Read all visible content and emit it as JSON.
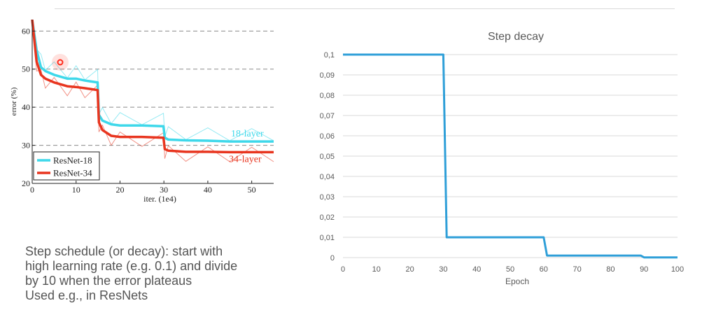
{
  "caption": {
    "lines": [
      "Step schedule (or decay): start with",
      "high learning rate (e.g. 0.1) and divide",
      "by 10 when the error plateaus",
      "Used e.g., in ResNets"
    ]
  },
  "chart_data": [
    {
      "type": "line",
      "title": "",
      "xlabel": "iter. (1e4)",
      "ylabel": "error (%)",
      "xlim": [
        0,
        55
      ],
      "ylim": [
        20,
        63
      ],
      "x_ticks": [
        "0",
        "10",
        "20",
        "30",
        "40",
        "50"
      ],
      "y_ticks": [
        "20",
        "30",
        "40",
        "50",
        "60"
      ],
      "gridlines": "dashed horizontal at 30, 40, 50, 60",
      "legend_position": "bottom-left",
      "series": [
        {
          "name": "ResNet-18",
          "label": "18-layer",
          "color": "#3ed8ea",
          "x": [
            0,
            1,
            2,
            3,
            5,
            8,
            10,
            12,
            14.9,
            15.2,
            16,
            18,
            20,
            25,
            29.9,
            30.2,
            31,
            35,
            40,
            45,
            50,
            55
          ],
          "y": [
            63,
            55,
            50.5,
            49.5,
            48.5,
            47.5,
            47.5,
            47,
            46.5,
            38,
            36.5,
            35.5,
            35.2,
            35.2,
            35,
            32,
            31.5,
            31.3,
            31.2,
            31,
            31,
            31
          ]
        },
        {
          "name": "ResNet-34",
          "label": "34-layer",
          "color": "#e8351f",
          "x": [
            0,
            1,
            2,
            3,
            5,
            8,
            10,
            12,
            14.9,
            15.2,
            16,
            18,
            20,
            25,
            29.9,
            30.2,
            31,
            35,
            40,
            45,
            50,
            55
          ],
          "y": [
            63,
            52,
            48.5,
            47.5,
            46.5,
            45.5,
            45.3,
            45,
            44.5,
            36,
            34,
            32.5,
            32.2,
            32.2,
            32,
            29,
            28.6,
            28.3,
            28.3,
            28.2,
            28.2,
            28.2
          ]
        }
      ]
    },
    {
      "type": "line",
      "title": "Step decay",
      "xlabel": "Epoch",
      "ylabel": "",
      "xlim": [
        0,
        100
      ],
      "ylim": [
        0,
        0.1
      ],
      "x_ticks": [
        "0",
        "10",
        "20",
        "30",
        "40",
        "50",
        "60",
        "70",
        "80",
        "90",
        "100"
      ],
      "y_ticks": [
        "0",
        "0,01",
        "0,02",
        "0,03",
        "0,04",
        "0,05",
        "0,06",
        "0,07",
        "0,08",
        "0,09",
        "0,1"
      ],
      "grid": true,
      "series": [
        {
          "color": "#2f9fd8",
          "x": [
            0,
            30,
            31,
            60,
            61,
            89,
            90,
            100
          ],
          "y": [
            0.1,
            0.1,
            0.01,
            0.01,
            0.001,
            0.001,
            0.0001,
            0.0001
          ]
        }
      ]
    }
  ]
}
